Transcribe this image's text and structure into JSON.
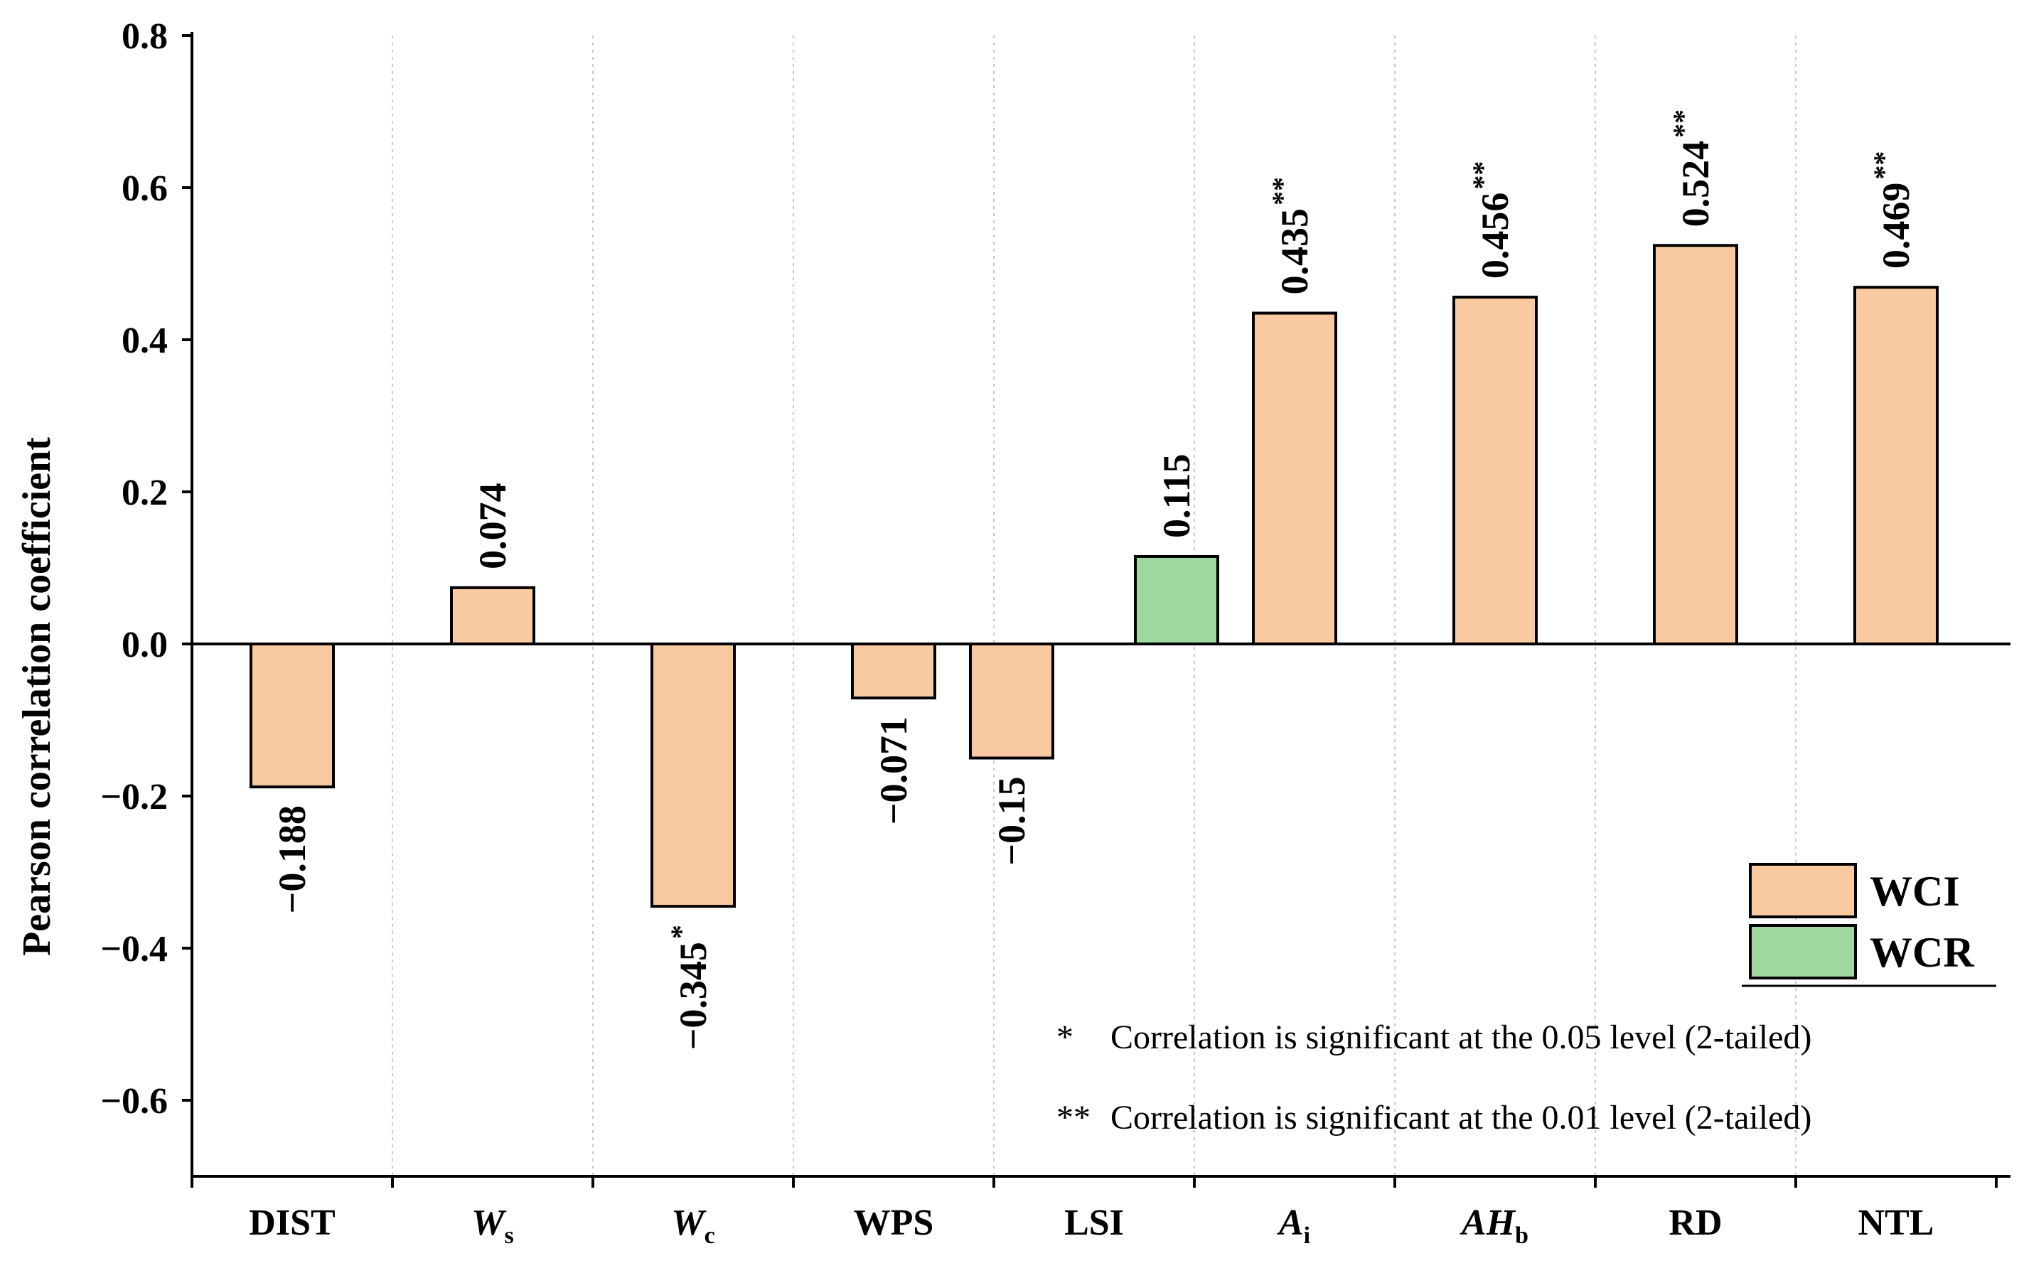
{
  "chart_data": {
    "type": "bar",
    "ylabel": "Pearson correlation coefficient",
    "ylim": [
      -0.7,
      0.8
    ],
    "yticks": [
      "0.8",
      "0.6",
      "0.4",
      "0.2",
      "0.0",
      "−0.2",
      "−0.4",
      "−0.6"
    ],
    "ytick_values": [
      0.8,
      0.6,
      0.4,
      0.2,
      0.0,
      -0.2,
      -0.4,
      -0.6
    ],
    "categories": [
      {
        "main": "DIST",
        "sub": "",
        "italic": false
      },
      {
        "main": "W",
        "sub": "s",
        "italic": true
      },
      {
        "main": "W",
        "sub": "c",
        "italic": true
      },
      {
        "main": "WPS",
        "sub": "",
        "italic": false
      },
      {
        "main": "LSI",
        "sub": "",
        "italic": false
      },
      {
        "main": "A",
        "sub": "i",
        "italic": true
      },
      {
        "main": "AH",
        "sub": "b",
        "italic": true
      },
      {
        "main": "RD",
        "sub": "",
        "italic": false
      },
      {
        "main": "NTL",
        "sub": "",
        "italic": false
      }
    ],
    "series": [
      {
        "name": "WCI",
        "color": "#F9C99F",
        "values": [
          -0.188,
          0.074,
          -0.345,
          -0.071,
          -0.15,
          0.435,
          0.456,
          0.524,
          0.469
        ],
        "labels": [
          "−0.188",
          "0.074",
          "−0.345",
          "−0.071",
          "−0.15",
          "0.435",
          "0.456",
          "0.524",
          "0.469"
        ],
        "significance": [
          "",
          "",
          "*",
          "",
          "",
          "**",
          "**",
          "**",
          "**"
        ]
      },
      {
        "name": "WCR",
        "color": "#9FD89F",
        "values": [
          null,
          null,
          null,
          null,
          0.115,
          null,
          null,
          null,
          null
        ],
        "labels": [
          "",
          "",
          "",
          "",
          "0.115",
          "",
          "",
          "",
          ""
        ],
        "significance": [
          "",
          "",
          "",
          "",
          "",
          "",
          "",
          "",
          ""
        ]
      }
    ],
    "legend": {
      "position": "bottom-right",
      "entries": [
        "WCI",
        "WCR"
      ]
    },
    "notes": [
      {
        "symbol": "*",
        "text": "Correlation is significant at the 0.05 level (2-tailed)"
      },
      {
        "symbol": "**",
        "text": "Correlation is significant at the 0.01 level (2-tailed)"
      }
    ],
    "grid": "vertical-dotted-category-separators"
  }
}
